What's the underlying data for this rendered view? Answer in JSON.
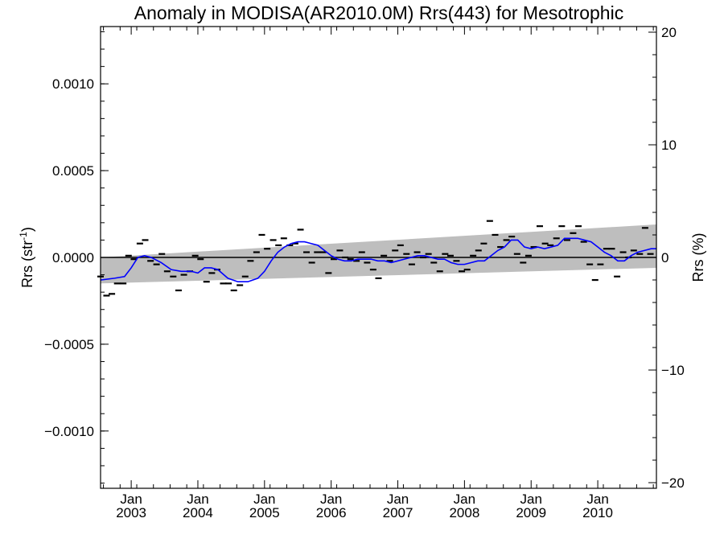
{
  "chart_data": {
    "type": "line",
    "title": "Anomaly in MODISA(AR2010.0M) Rrs(443) for Mesotrophic",
    "ylabel": {
      "main": "Rrs (str",
      "sup": "-1",
      "end": ")"
    },
    "y2label": "Rrs (%)",
    "xlim": [
      2002.54,
      2010.88
    ],
    "ylim": [
      -0.00133,
      0.00133
    ],
    "y2lim": [
      -20.5,
      20.5
    ],
    "yticks": [
      {
        "value": 0.001,
        "label": "0.0010"
      },
      {
        "value": 0.0005,
        "label": "0.0005"
      },
      {
        "value": 0,
        "label": "0.0000"
      },
      {
        "value": -0.0005,
        "label": "−0.0005"
      },
      {
        "value": -0.001,
        "label": "−0.0010"
      }
    ],
    "y2ticks": [
      {
        "value": 20,
        "label": "20"
      },
      {
        "value": 10,
        "label": "10"
      },
      {
        "value": 0,
        "label": "0"
      },
      {
        "value": -10,
        "label": "−10"
      },
      {
        "value": -20,
        "label": "−20"
      }
    ],
    "xticks": [
      {
        "value": 2003.0,
        "month": "Jan",
        "year": "2003"
      },
      {
        "value": 2004.0,
        "month": "Jan",
        "year": "2004"
      },
      {
        "value": 2005.0,
        "month": "Jan",
        "year": "2005"
      },
      {
        "value": 2006.0,
        "month": "Jan",
        "year": "2006"
      },
      {
        "value": 2007.0,
        "month": "Jan",
        "year": "2007"
      },
      {
        "value": 2008.0,
        "month": "Jan",
        "year": "2008"
      },
      {
        "value": 2009.0,
        "month": "Jan",
        "year": "2009"
      },
      {
        "value": 2010.0,
        "month": "Jan",
        "year": "2010"
      }
    ],
    "trend_band": {
      "x": [
        2002.54,
        2010.88
      ],
      "upper": [
        0.0,
        0.00019
      ],
      "lower": [
        -0.00015,
        -6e-05
      ]
    },
    "zero_line": 0,
    "monthly_points": {
      "x": [
        2002.54,
        2002.63,
        2002.71,
        2002.79,
        2002.88,
        2002.96,
        2003.04,
        2003.13,
        2003.21,
        2003.29,
        2003.38,
        2003.46,
        2003.54,
        2003.63,
        2003.71,
        2003.79,
        2003.88,
        2003.96,
        2004.04,
        2004.13,
        2004.21,
        2004.29,
        2004.38,
        2004.46,
        2004.54,
        2004.63,
        2004.71,
        2004.79,
        2004.88,
        2004.96,
        2005.04,
        2005.13,
        2005.21,
        2005.29,
        2005.38,
        2005.46,
        2005.54,
        2005.63,
        2005.71,
        2005.79,
        2005.88,
        2005.96,
        2006.04,
        2006.13,
        2006.21,
        2006.29,
        2006.38,
        2006.46,
        2006.54,
        2006.63,
        2006.71,
        2006.79,
        2006.88,
        2006.96,
        2007.04,
        2007.13,
        2007.21,
        2007.29,
        2007.38,
        2007.46,
        2007.54,
        2007.63,
        2007.71,
        2007.79,
        2007.88,
        2007.96,
        2008.04,
        2008.13,
        2008.21,
        2008.29,
        2008.38,
        2008.46,
        2008.54,
        2008.63,
        2008.71,
        2008.79,
        2008.88,
        2008.96,
        2009.04,
        2009.13,
        2009.21,
        2009.29,
        2009.38,
        2009.46,
        2009.54,
        2009.63,
        2009.71,
        2009.79,
        2009.88,
        2009.96,
        2010.04,
        2010.13,
        2010.21,
        2010.29,
        2010.38,
        2010.46,
        2010.54,
        2010.63,
        2010.71,
        2010.79
      ],
      "y": [
        -0.00011,
        -0.00022,
        -0.00021,
        -0.00015,
        -0.00015,
        1e-05,
        -1e-05,
        8e-05,
        0.0001,
        -2e-05,
        -4e-05,
        2e-05,
        -8e-05,
        -0.00011,
        -0.00019,
        -0.0001,
        -8e-05,
        1e-05,
        -1e-05,
        -0.00014,
        -9e-05,
        -7e-05,
        -0.00015,
        -0.00015,
        -0.00019,
        -0.00016,
        -0.00011,
        -2e-05,
        3e-05,
        0.00013,
        5e-05,
        0.0001,
        7e-05,
        0.00011,
        7e-05,
        8e-05,
        0.00016,
        3e-05,
        -3e-05,
        3e-05,
        3e-05,
        -9e-05,
        -1e-05,
        4e-05,
        0.0,
        -1e-05,
        -2e-05,
        3e-05,
        -3e-05,
        -7e-05,
        -0.00012,
        1e-05,
        -2e-05,
        4e-05,
        7e-05,
        2e-05,
        -4e-05,
        3e-05,
        0.0,
        2e-05,
        -3e-05,
        -8e-05,
        2e-05,
        1e-05,
        -2e-05,
        -8e-05,
        -7e-05,
        1e-05,
        4e-05,
        8e-05,
        0.00021,
        0.00013,
        6e-05,
        0.0001,
        0.00012,
        2e-05,
        -3e-05,
        1e-05,
        6e-05,
        0.00018,
        8e-05,
        7e-05,
        0.00011,
        0.00018,
        0.0001,
        0.00014,
        0.00018,
        9e-05,
        -4e-05,
        -0.00013,
        -4e-05,
        5e-05,
        5e-05,
        -0.00011,
        3e-05,
        0.0,
        4e-05,
        2e-05,
        0.00017,
        2e-05
      ]
    },
    "smoothed": {
      "color": "#0000ff",
      "x": [
        2002.54,
        2002.75,
        2002.9,
        2003.0,
        2003.1,
        2003.2,
        2003.3,
        2003.45,
        2003.6,
        2003.75,
        2003.9,
        2004.0,
        2004.1,
        2004.2,
        2004.3,
        2004.45,
        2004.6,
        2004.75,
        2004.9,
        2005.0,
        2005.1,
        2005.2,
        2005.3,
        2005.4,
        2005.5,
        2005.6,
        2005.7,
        2005.8,
        2005.9,
        2006.0,
        2006.1,
        2006.2,
        2006.3,
        2006.4,
        2006.5,
        2006.6,
        2006.7,
        2006.8,
        2006.9,
        2007.0,
        2007.1,
        2007.2,
        2007.3,
        2007.4,
        2007.5,
        2007.6,
        2007.7,
        2007.8,
        2007.9,
        2008.0,
        2008.1,
        2008.2,
        2008.3,
        2008.4,
        2008.5,
        2008.6,
        2008.7,
        2008.8,
        2008.9,
        2009.0,
        2009.1,
        2009.2,
        2009.3,
        2009.4,
        2009.5,
        2009.6,
        2009.7,
        2009.8,
        2009.9,
        2010.0,
        2010.1,
        2010.2,
        2010.3,
        2010.4,
        2010.5,
        2010.6,
        2010.7,
        2010.8,
        2010.88
      ],
      "y": [
        -0.00013,
        -0.00012,
        -0.00011,
        -6e-05,
        0.0,
        1e-05,
        0.0,
        -3e-05,
        -7e-05,
        -8e-05,
        -8e-05,
        -9e-05,
        -6e-05,
        -6e-05,
        -7e-05,
        -0.00012,
        -0.00014,
        -0.00014,
        -0.00012,
        -8e-05,
        -2e-05,
        3e-05,
        6e-05,
        8e-05,
        9e-05,
        9e-05,
        8e-05,
        7e-05,
        4e-05,
        1e-05,
        -1e-05,
        -2e-05,
        -2e-05,
        -1e-05,
        -1e-05,
        -1e-05,
        -2e-05,
        -2e-05,
        -3e-05,
        -2e-05,
        -1e-05,
        0.0,
        1e-05,
        1e-05,
        0.0,
        -1e-05,
        -1e-05,
        -3e-05,
        -4e-05,
        -4e-05,
        -3e-05,
        -2e-05,
        -2e-05,
        1e-05,
        4e-05,
        6e-05,
        0.0001,
        0.0001,
        6e-05,
        5e-05,
        6e-05,
        5e-05,
        6e-05,
        7e-05,
        0.00011,
        0.00011,
        0.00011,
        0.0001,
        9e-05,
        6e-05,
        3e-05,
        1e-05,
        -2e-05,
        -2e-05,
        1e-05,
        3e-05,
        4e-05,
        5e-05,
        5e-05
      ]
    }
  }
}
